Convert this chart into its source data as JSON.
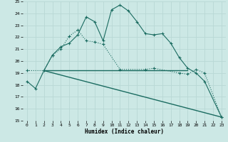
{
  "xlabel": "Humidex (Indice chaleur)",
  "bg_color": "#cce8e5",
  "grid_color": "#b8d8d5",
  "line_color": "#1a6b60",
  "ylim": [
    15,
    25
  ],
  "xlim": [
    -0.5,
    23.5
  ],
  "yticks": [
    15,
    16,
    17,
    18,
    19,
    20,
    21,
    22,
    23,
    24,
    25
  ],
  "xticks": [
    0,
    1,
    2,
    3,
    4,
    5,
    6,
    7,
    8,
    9,
    10,
    11,
    12,
    13,
    14,
    15,
    16,
    17,
    18,
    19,
    20,
    21,
    22,
    23
  ],
  "series1_x": [
    0,
    1,
    2,
    3,
    4,
    5,
    6,
    7,
    8,
    9,
    10,
    11,
    12,
    13,
    14,
    15,
    16,
    17,
    18,
    19,
    20,
    21,
    23
  ],
  "series1_y": [
    18.3,
    17.7,
    19.2,
    20.5,
    21.2,
    21.5,
    22.2,
    23.7,
    23.3,
    21.7,
    24.3,
    24.7,
    24.2,
    23.3,
    22.3,
    22.2,
    22.3,
    21.5,
    20.3,
    19.4,
    19.0,
    18.3,
    15.3
  ],
  "series2_x": [
    0,
    2,
    3,
    4,
    5,
    6,
    7,
    8,
    9,
    11,
    14,
    15,
    18,
    19,
    20,
    21,
    23
  ],
  "series2_y": [
    19.2,
    19.2,
    20.5,
    21.0,
    22.1,
    22.6,
    21.7,
    21.6,
    21.4,
    19.3,
    19.3,
    19.4,
    19.0,
    18.9,
    19.3,
    19.0,
    15.3
  ],
  "line3_x": [
    2,
    19
  ],
  "line3_y": [
    19.2,
    19.2
  ],
  "line4_x": [
    2,
    23
  ],
  "line4_y": [
    19.2,
    15.3
  ]
}
